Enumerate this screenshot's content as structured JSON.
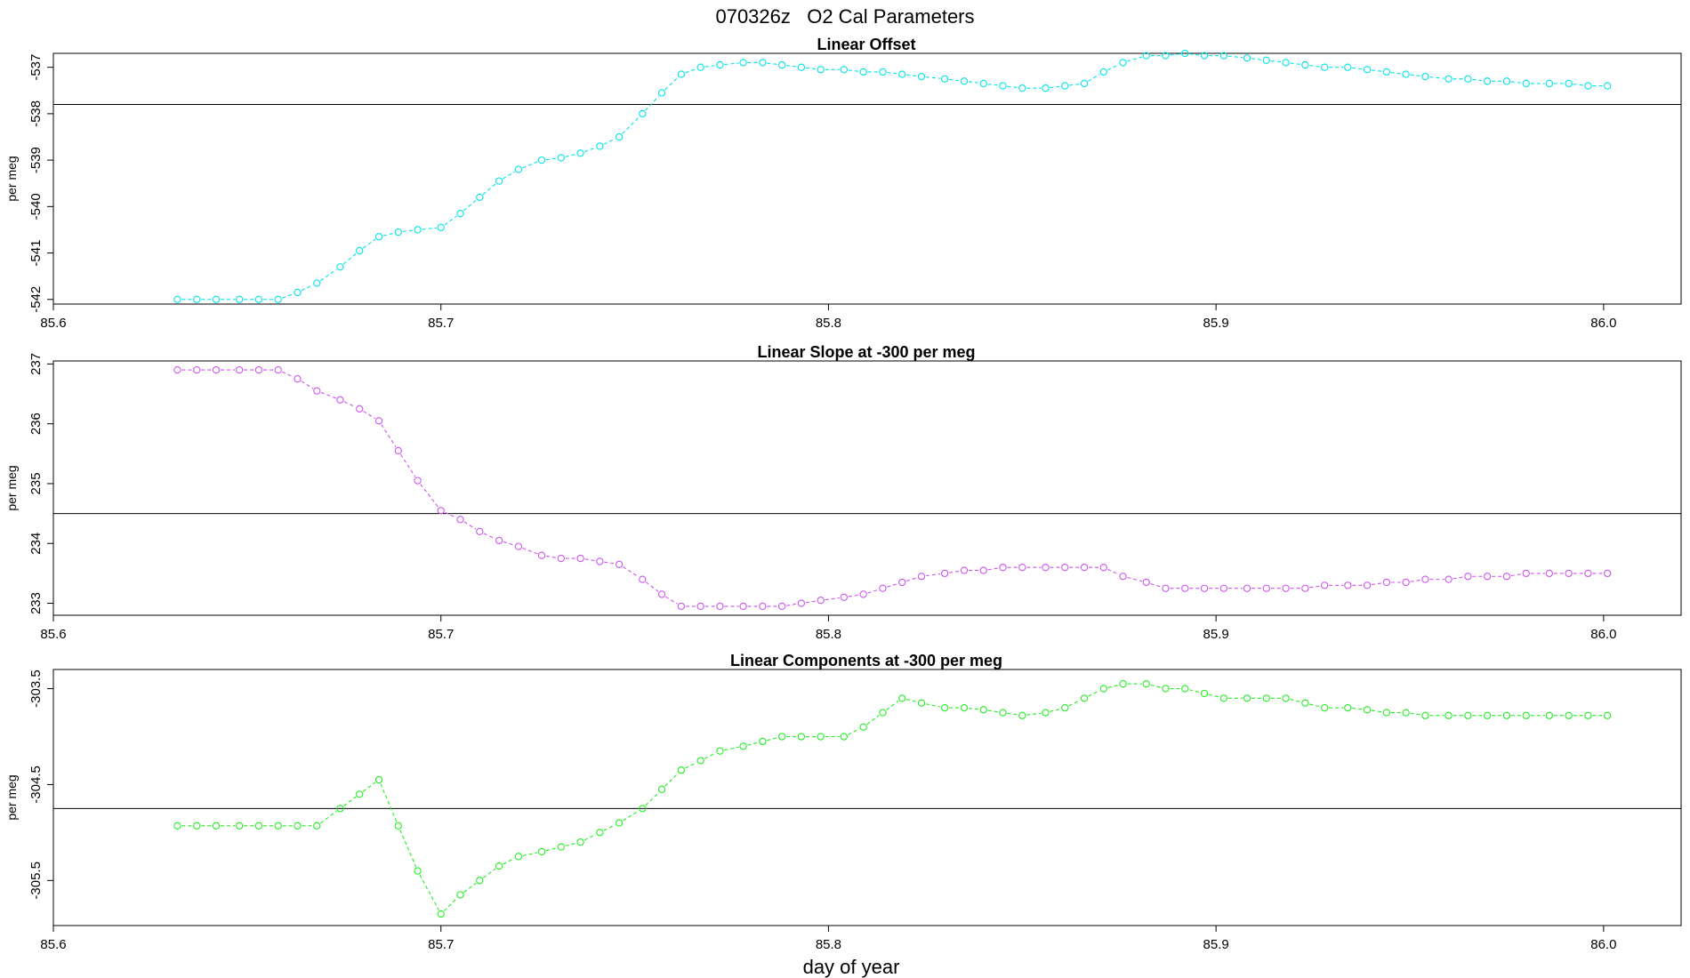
{
  "title": "070326z   O2 Cal Parameters",
  "xlabel": "day of year",
  "chart_data": [
    {
      "type": "line",
      "title": "Linear Offset",
      "ylabel": "per meg",
      "color": "#00e5e5",
      "xlim": [
        85.6,
        86.02
      ],
      "ylim": [
        -542.1,
        -536.7
      ],
      "xticks": [
        85.6,
        85.7,
        85.8,
        85.9,
        86.0
      ],
      "xtick_labels": [
        "85.6",
        "85.7",
        "85.8",
        "85.9",
        "86.0"
      ],
      "yticks": [
        -542,
        -541,
        -540,
        -539,
        -538,
        -537
      ],
      "ytick_labels": [
        "-542",
        "-541",
        "-540",
        "-539",
        "-538",
        "-537"
      ],
      "hline": -537.8,
      "series": [
        {
          "x": [
            85.632,
            85.637,
            85.642,
            85.648,
            85.653,
            85.658,
            85.663,
            85.668,
            85.674,
            85.679,
            85.684,
            85.689,
            85.694,
            85.7,
            85.705,
            85.71,
            85.715,
            85.72,
            85.726,
            85.731,
            85.736,
            85.741,
            85.746,
            85.752,
            85.757,
            85.762,
            85.767,
            85.772,
            85.778,
            85.783,
            85.788,
            85.793,
            85.798,
            85.804,
            85.809,
            85.814,
            85.819,
            85.824,
            85.83,
            85.835,
            85.84,
            85.845,
            85.85,
            85.856,
            85.861,
            85.866,
            85.871,
            85.876,
            85.882,
            85.887,
            85.892,
            85.897,
            85.902,
            85.908,
            85.913,
            85.918,
            85.923,
            85.928,
            85.934,
            85.939,
            85.944,
            85.949,
            85.954,
            85.96,
            85.965,
            85.97,
            85.975,
            85.98,
            85.986,
            85.991,
            85.996,
            86.001
          ],
          "y": [
            -542.0,
            -542.0,
            -542.0,
            -542.0,
            -542.0,
            -542.0,
            -541.85,
            -541.65,
            -541.3,
            -540.95,
            -540.65,
            -540.55,
            -540.5,
            -540.45,
            -540.15,
            -539.8,
            -539.45,
            -539.2,
            -539.0,
            -538.95,
            -538.85,
            -538.7,
            -538.5,
            -538.0,
            -537.55,
            -537.15,
            -537.0,
            -536.95,
            -536.9,
            -536.9,
            -536.95,
            -537.0,
            -537.05,
            -537.05,
            -537.1,
            -537.1,
            -537.15,
            -537.2,
            -537.25,
            -537.3,
            -537.35,
            -537.4,
            -537.45,
            -537.45,
            -537.4,
            -537.35,
            -537.1,
            -536.9,
            -536.75,
            -536.75,
            -536.7,
            -536.75,
            -536.75,
            -536.8,
            -536.85,
            -536.9,
            -536.95,
            -537.0,
            -537.0,
            -537.05,
            -537.1,
            -537.15,
            -537.2,
            -537.25,
            -537.25,
            -537.3,
            -537.3,
            -537.35,
            -537.35,
            -537.35,
            -537.4,
            -537.4
          ]
        }
      ]
    },
    {
      "type": "line",
      "title": "Linear Slope at -300 per meg",
      "ylabel": "per meg",
      "color": "#cc55ee",
      "xlim": [
        85.6,
        86.02
      ],
      "ylim": [
        232.8,
        237.05
      ],
      "xticks": [
        85.6,
        85.7,
        85.8,
        85.9,
        86.0
      ],
      "xtick_labels": [
        "85.6",
        "85.7",
        "85.8",
        "85.9",
        "86.0"
      ],
      "yticks": [
        233,
        234,
        235,
        236,
        237
      ],
      "ytick_labels": [
        "233",
        "234",
        "235",
        "236",
        "237"
      ],
      "hline": 234.5,
      "series": [
        {
          "x": [
            85.632,
            85.637,
            85.642,
            85.648,
            85.653,
            85.658,
            85.663,
            85.668,
            85.674,
            85.679,
            85.684,
            85.689,
            85.694,
            85.7,
            85.705,
            85.71,
            85.715,
            85.72,
            85.726,
            85.731,
            85.736,
            85.741,
            85.746,
            85.752,
            85.757,
            85.762,
            85.767,
            85.772,
            85.778,
            85.783,
            85.788,
            85.793,
            85.798,
            85.804,
            85.809,
            85.814,
            85.819,
            85.824,
            85.83,
            85.835,
            85.84,
            85.845,
            85.85,
            85.856,
            85.861,
            85.866,
            85.871,
            85.876,
            85.882,
            85.887,
            85.892,
            85.897,
            85.902,
            85.908,
            85.913,
            85.918,
            85.923,
            85.928,
            85.934,
            85.939,
            85.944,
            85.949,
            85.954,
            85.96,
            85.965,
            85.97,
            85.975,
            85.98,
            85.986,
            85.991,
            85.996,
            86.001
          ],
          "y": [
            236.9,
            236.9,
            236.9,
            236.9,
            236.9,
            236.9,
            236.75,
            236.55,
            236.4,
            236.25,
            236.05,
            235.55,
            235.05,
            234.55,
            234.4,
            234.2,
            234.05,
            233.95,
            233.8,
            233.75,
            233.75,
            233.7,
            233.65,
            233.4,
            233.15,
            232.95,
            232.95,
            232.95,
            232.95,
            232.95,
            232.95,
            233.0,
            233.05,
            233.1,
            233.15,
            233.25,
            233.35,
            233.45,
            233.5,
            233.55,
            233.55,
            233.6,
            233.6,
            233.6,
            233.6,
            233.6,
            233.6,
            233.45,
            233.35,
            233.25,
            233.25,
            233.25,
            233.25,
            233.25,
            233.25,
            233.25,
            233.25,
            233.3,
            233.3,
            233.3,
            233.35,
            233.35,
            233.4,
            233.4,
            233.45,
            233.45,
            233.45,
            233.5,
            233.5,
            233.5,
            233.5,
            233.5
          ]
        }
      ]
    },
    {
      "type": "line",
      "title": "Linear Components at -300 per meg",
      "ylabel": "per meg",
      "color": "#22ee22",
      "xlim": [
        85.6,
        86.02
      ],
      "ylim": [
        -305.97,
        -303.3
      ],
      "xticks": [
        85.6,
        85.7,
        85.8,
        85.9,
        86.0
      ],
      "xtick_labels": [
        "85.6",
        "85.7",
        "85.8",
        "85.9",
        "86.0"
      ],
      "yticks": [
        -305.5,
        -304.5,
        -303.5
      ],
      "ytick_labels": [
        "-305.5",
        "-304.5",
        "-303.5"
      ],
      "hline": -304.75,
      "series": [
        {
          "x": [
            85.632,
            85.637,
            85.642,
            85.648,
            85.653,
            85.658,
            85.663,
            85.668,
            85.674,
            85.679,
            85.684,
            85.689,
            85.694,
            85.7,
            85.705,
            85.71,
            85.715,
            85.72,
            85.726,
            85.731,
            85.736,
            85.741,
            85.746,
            85.752,
            85.757,
            85.762,
            85.767,
            85.772,
            85.778,
            85.783,
            85.788,
            85.793,
            85.798,
            85.804,
            85.809,
            85.814,
            85.819,
            85.824,
            85.83,
            85.835,
            85.84,
            85.845,
            85.85,
            85.856,
            85.861,
            85.866,
            85.871,
            85.876,
            85.882,
            85.887,
            85.892,
            85.897,
            85.902,
            85.908,
            85.913,
            85.918,
            85.923,
            85.928,
            85.934,
            85.939,
            85.944,
            85.949,
            85.954,
            85.96,
            85.965,
            85.97,
            85.975,
            85.98,
            85.986,
            85.991,
            85.996,
            86.001
          ],
          "y": [
            -304.93,
            -304.93,
            -304.93,
            -304.93,
            -304.93,
            -304.93,
            -304.93,
            -304.93,
            -304.75,
            -304.6,
            -304.45,
            -304.93,
            -305.4,
            -305.85,
            -305.65,
            -305.5,
            -305.35,
            -305.25,
            -305.2,
            -305.15,
            -305.1,
            -305.0,
            -304.9,
            -304.75,
            -304.55,
            -304.35,
            -304.25,
            -304.15,
            -304.1,
            -304.05,
            -304.0,
            -304.0,
            -304.0,
            -304.0,
            -303.9,
            -303.75,
            -303.6,
            -303.65,
            -303.7,
            -303.7,
            -303.72,
            -303.75,
            -303.78,
            -303.75,
            -303.7,
            -303.6,
            -303.5,
            -303.45,
            -303.45,
            -303.5,
            -303.5,
            -303.55,
            -303.6,
            -303.6,
            -303.6,
            -303.6,
            -303.65,
            -303.7,
            -303.7,
            -303.72,
            -303.75,
            -303.75,
            -303.78,
            -303.78,
            -303.78,
            -303.78,
            -303.78,
            -303.78,
            -303.78,
            -303.78,
            -303.78,
            -303.78
          ]
        }
      ]
    }
  ]
}
